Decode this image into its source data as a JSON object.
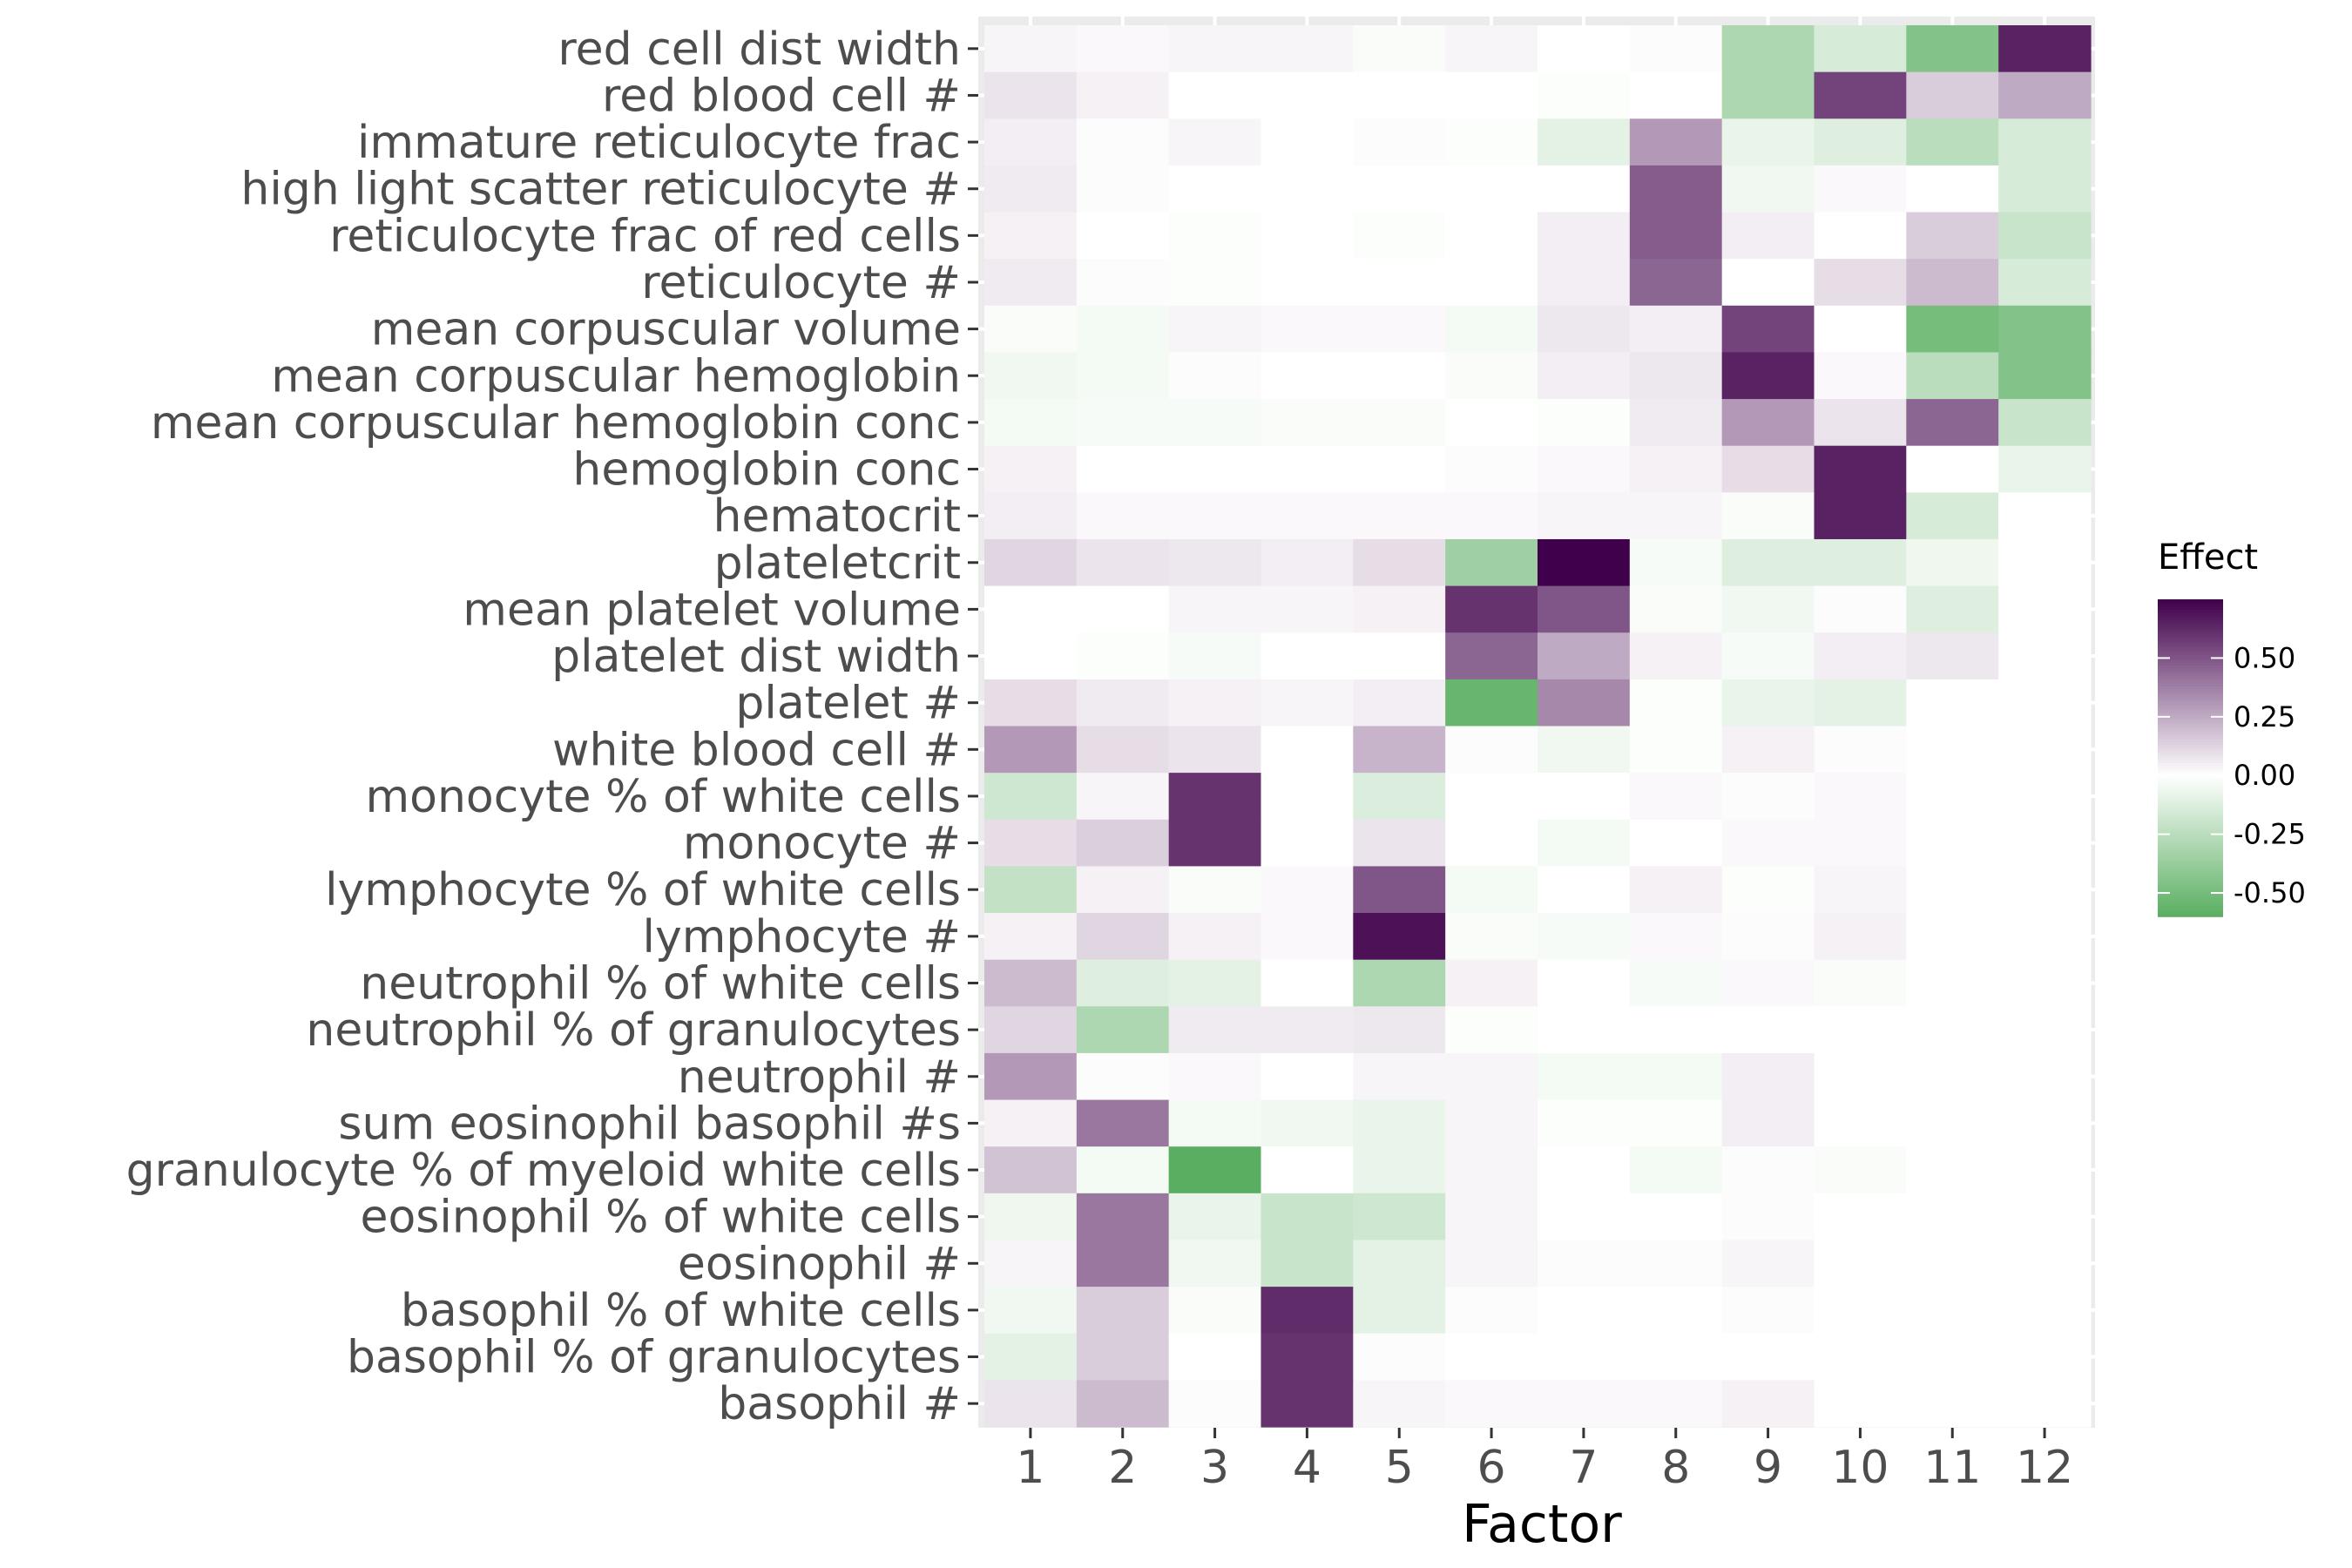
{
  "chart_data": {
    "type": "heatmap",
    "xlabel": "Factor",
    "ylabel": "",
    "x": [
      "1",
      "2",
      "3",
      "4",
      "5",
      "6",
      "7",
      "8",
      "9",
      "10",
      "11",
      "12"
    ],
    "y": [
      "red cell dist width",
      "red blood cell #",
      "immature reticulocyte frac",
      "high light scatter reticulocyte #",
      "reticulocyte frac of red cells",
      "reticulocyte #",
      "mean corpuscular volume",
      "mean corpuscular hemoglobin",
      "mean corpuscular hemoglobin conc",
      "hemoglobin conc",
      "hematocrit",
      "plateletcrit",
      "mean platelet volume",
      "platelet dist width",
      "platelet #",
      "white blood cell #",
      "monocyte % of white cells",
      "monocyte #",
      "lymphocyte % of white cells",
      "lymphocyte #",
      "neutrophil % of white cells",
      "neutrophil % of granulocytes",
      "neutrophil #",
      "sum eosinophil basophil #s",
      "granulocyte % of myeloid white cells",
      "eosinophil % of white cells",
      "eosinophil #",
      "basophil % of white cells",
      "basophil % of granulocytes",
      "basophil #"
    ],
    "values": [
      [
        0.03,
        0.02,
        0.03,
        0.03,
        -0.02,
        0.03,
        0.0,
        0.01,
        -0.3,
        -0.15,
        -0.45,
        0.65
      ],
      [
        0.08,
        0.04,
        0.0,
        0.0,
        0.0,
        0.0,
        -0.01,
        0.0,
        -0.3,
        0.55,
        0.15,
        0.25
      ],
      [
        0.05,
        0.01,
        0.03,
        0.0,
        0.01,
        -0.01,
        -0.1,
        0.3,
        -0.08,
        -0.12,
        -0.25,
        -0.15
      ],
      [
        0.06,
        0.01,
        0.0,
        0.0,
        0.0,
        0.0,
        0.0,
        0.48,
        -0.05,
        0.02,
        0.0,
        -0.15
      ],
      [
        0.04,
        0.0,
        -0.01,
        0.0,
        -0.01,
        0.0,
        0.05,
        0.48,
        0.05,
        0.0,
        0.15,
        -0.2
      ],
      [
        0.06,
        0.01,
        -0.01,
        0.0,
        0.0,
        0.0,
        0.05,
        0.45,
        0.0,
        0.1,
        0.2,
        -0.15
      ],
      [
        -0.02,
        -0.04,
        0.03,
        0.02,
        0.02,
        -0.04,
        0.07,
        0.05,
        0.55,
        0.0,
        -0.5,
        -0.45
      ],
      [
        -0.05,
        -0.04,
        0.01,
        0.0,
        0.0,
        -0.02,
        0.05,
        0.07,
        0.65,
        0.02,
        -0.25,
        -0.45
      ],
      [
        -0.04,
        -0.03,
        -0.03,
        -0.02,
        -0.02,
        0.0,
        -0.01,
        0.06,
        0.3,
        0.08,
        0.45,
        -0.2
      ],
      [
        0.04,
        0.0,
        0.0,
        0.0,
        0.0,
        0.01,
        0.02,
        0.04,
        0.1,
        0.65,
        0.0,
        -0.08
      ],
      [
        0.05,
        0.02,
        0.02,
        0.02,
        0.02,
        0.02,
        0.03,
        0.03,
        -0.02,
        0.65,
        -0.15,
        0.0
      ],
      [
        0.12,
        0.08,
        0.07,
        0.05,
        0.1,
        -0.35,
        0.75,
        -0.03,
        -0.12,
        -0.12,
        -0.06,
        0.0
      ],
      [
        0.0,
        0.0,
        0.03,
        0.03,
        0.04,
        0.6,
        0.5,
        -0.02,
        -0.05,
        0.01,
        -0.12,
        0.0
      ],
      [
        0.0,
        -0.01,
        -0.03,
        0.0,
        0.0,
        0.45,
        0.25,
        0.04,
        -0.03,
        0.05,
        0.07,
        0.0
      ],
      [
        0.1,
        0.06,
        0.04,
        0.03,
        0.05,
        -0.55,
        0.35,
        -0.01,
        -0.08,
        -0.1,
        0.0,
        0.0
      ],
      [
        0.3,
        0.1,
        0.08,
        0.0,
        0.22,
        0.01,
        -0.05,
        -0.01,
        0.04,
        0.01,
        0.0,
        0.0
      ],
      [
        -0.18,
        0.03,
        0.6,
        0.0,
        -0.13,
        0.0,
        0.0,
        0.02,
        0.01,
        0.02,
        0.0,
        0.0
      ],
      [
        0.1,
        0.14,
        0.6,
        0.0,
        0.08,
        0.0,
        -0.04,
        0.0,
        0.02,
        0.02,
        0.0,
        0.0
      ],
      [
        -0.22,
        0.04,
        -0.02,
        0.02,
        0.5,
        -0.04,
        0.0,
        0.04,
        -0.01,
        0.03,
        0.0,
        0.0
      ],
      [
        0.04,
        0.12,
        0.04,
        0.02,
        0.7,
        -0.02,
        -0.03,
        0.02,
        0.01,
        0.04,
        0.0,
        0.0
      ],
      [
        0.2,
        -0.12,
        -0.1,
        0.0,
        -0.3,
        0.04,
        0.0,
        -0.03,
        0.02,
        -0.02,
        0.0,
        0.0
      ],
      [
        0.12,
        -0.3,
        0.06,
        0.06,
        0.07,
        -0.01,
        0.0,
        0.0,
        0.0,
        0.0,
        0.0,
        0.0
      ],
      [
        0.3,
        0.01,
        0.02,
        0.0,
        0.03,
        0.03,
        -0.04,
        -0.04,
        0.05,
        0.0,
        0.0,
        0.0
      ],
      [
        0.04,
        0.4,
        -0.04,
        -0.05,
        -0.08,
        0.03,
        -0.01,
        -0.01,
        0.05,
        0.0,
        0.0,
        0.0
      ],
      [
        0.18,
        -0.04,
        -0.6,
        0.0,
        -0.08,
        0.03,
        0.0,
        -0.04,
        0.01,
        -0.02,
        0.0,
        0.0
      ],
      [
        -0.06,
        0.4,
        -0.08,
        -0.2,
        -0.18,
        0.03,
        0.0,
        0.0,
        0.01,
        0.0,
        0.0,
        0.0
      ],
      [
        0.03,
        0.4,
        -0.05,
        -0.2,
        -0.1,
        0.03,
        0.01,
        0.01,
        0.03,
        0.0,
        0.0,
        0.0
      ],
      [
        -0.05,
        0.15,
        -0.02,
        0.62,
        -0.1,
        0.01,
        0.0,
        0.0,
        0.01,
        0.0,
        0.0,
        0.0
      ],
      [
        -0.1,
        0.15,
        0.0,
        0.6,
        0.01,
        0.0,
        0.0,
        0.0,
        0.0,
        0.0,
        0.0,
        0.0
      ],
      [
        0.08,
        0.2,
        0.01,
        0.6,
        0.03,
        0.02,
        0.02,
        0.02,
        0.04,
        0.0,
        0.0,
        0.0
      ]
    ],
    "legend": {
      "title": "Effect",
      "ticks": [
        0.5,
        0.25,
        0.0,
        -0.25,
        -0.5
      ],
      "tick_labels": [
        "0.50",
        "0.25",
        "0.00",
        "-0.25",
        "-0.50"
      ],
      "range": [
        -0.6,
        0.75
      ],
      "placement": "right"
    },
    "colors": {
      "high": "#40004b",
      "mid": "#ffffff",
      "low": "#5aae61",
      "panel_background": "#ebebeb",
      "label_text": "#4d4d4d"
    },
    "grid": true
  }
}
